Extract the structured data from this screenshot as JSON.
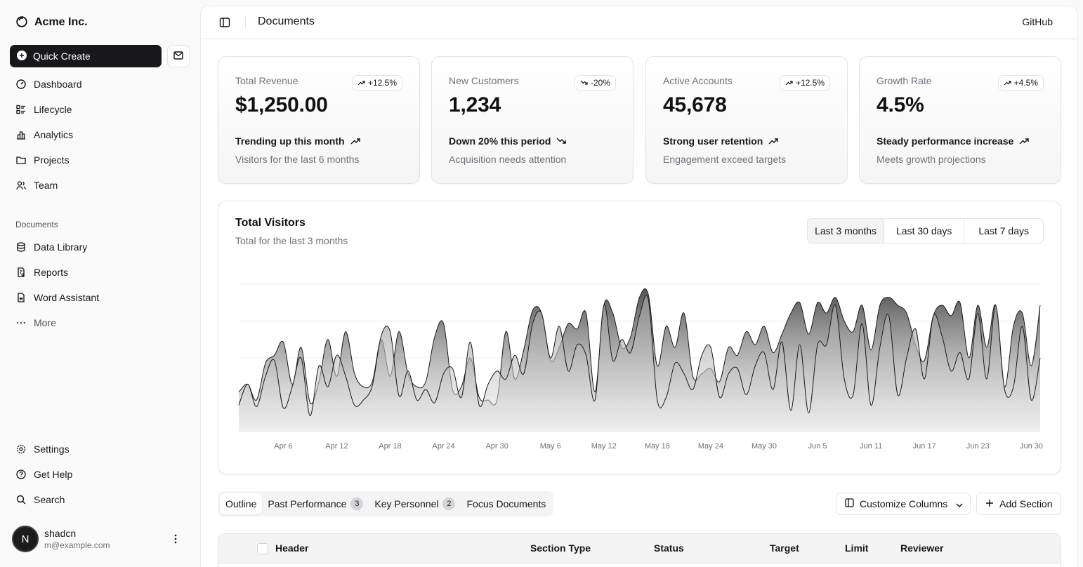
{
  "brand": {
    "name": "Acme Inc.",
    "icon": "circle-logo-icon"
  },
  "sidebar": {
    "quick_create_label": "Quick Create",
    "primary": [
      {
        "label": "Dashboard",
        "icon": "gauge-icon"
      },
      {
        "label": "Lifecycle",
        "icon": "list-details-icon"
      },
      {
        "label": "Analytics",
        "icon": "bar-chart-icon"
      },
      {
        "label": "Projects",
        "icon": "folder-icon"
      },
      {
        "label": "Team",
        "icon": "users-icon"
      }
    ],
    "documents_label": "Documents",
    "documents": [
      {
        "label": "Data Library",
        "icon": "database-icon"
      },
      {
        "label": "Reports",
        "icon": "report-icon"
      },
      {
        "label": "Word Assistant",
        "icon": "file-word-icon"
      },
      {
        "label": "More",
        "icon": "dots-icon"
      }
    ],
    "secondary": [
      {
        "label": "Settings",
        "icon": "gear-icon"
      },
      {
        "label": "Get Help",
        "icon": "help-icon"
      },
      {
        "label": "Search",
        "icon": "search-icon"
      }
    ],
    "user": {
      "initial": "N",
      "name": "shadcn",
      "email": "m@example.com"
    }
  },
  "topbar": {
    "title": "Documents",
    "github": "GitHub"
  },
  "cards": [
    {
      "title": "Total Revenue",
      "value": "$1,250.00",
      "badge": "+12.5%",
      "trend": "up",
      "foot1": "Trending up this month",
      "foot2": "Visitors for the last 6 months"
    },
    {
      "title": "New Customers",
      "value": "1,234",
      "badge": "-20%",
      "trend": "down",
      "foot1": "Down 20% this period",
      "foot2": "Acquisition needs attention"
    },
    {
      "title": "Active Accounts",
      "value": "45,678",
      "badge": "+12.5%",
      "trend": "up",
      "foot1": "Strong user retention",
      "foot2": "Engagement exceed targets"
    },
    {
      "title": "Growth Rate",
      "value": "4.5%",
      "badge": "+4.5%",
      "trend": "up",
      "foot1": "Steady performance increase",
      "foot2": "Meets growth projections"
    }
  ],
  "chart": {
    "title": "Total Visitors",
    "subtitle": "Total for the last 3 months",
    "ranges": [
      "Last 3 months",
      "Last 30 days",
      "Last 7 days"
    ],
    "active_range": "Last 3 months"
  },
  "chart_data": {
    "type": "area",
    "x": [
      "Apr 1",
      "Apr 2",
      "Apr 3",
      "Apr 4",
      "Apr 5",
      "Apr 6",
      "Apr 7",
      "Apr 8",
      "Apr 9",
      "Apr 10",
      "Apr 11",
      "Apr 12",
      "Apr 13",
      "Apr 14",
      "Apr 15",
      "Apr 16",
      "Apr 17",
      "Apr 18",
      "Apr 19",
      "Apr 20",
      "Apr 21",
      "Apr 22",
      "Apr 23",
      "Apr 24",
      "Apr 25",
      "Apr 26",
      "Apr 27",
      "Apr 28",
      "Apr 29",
      "Apr 30",
      "May 1",
      "May 2",
      "May 3",
      "May 4",
      "May 5",
      "May 6",
      "May 7",
      "May 8",
      "May 9",
      "May 10",
      "May 11",
      "May 12",
      "May 13",
      "May 14",
      "May 15",
      "May 16",
      "May 17",
      "May 18",
      "May 19",
      "May 20",
      "May 21",
      "May 22",
      "May 23",
      "May 24",
      "May 25",
      "May 26",
      "May 27",
      "May 28",
      "May 29",
      "May 30",
      "May 31",
      "Jun 1",
      "Jun 2",
      "Jun 3",
      "Jun 4",
      "Jun 5",
      "Jun 6",
      "Jun 7",
      "Jun 8",
      "Jun 9",
      "Jun 10",
      "Jun 11",
      "Jun 12",
      "Jun 13",
      "Jun 14",
      "Jun 15",
      "Jun 16",
      "Jun 17",
      "Jun 18",
      "Jun 19",
      "Jun 20",
      "Jun 21",
      "Jun 22",
      "Jun 23",
      "Jun 24",
      "Jun 25",
      "Jun 26",
      "Jun 27",
      "Jun 28",
      "Jun 29",
      "Jun 30"
    ],
    "x_ticks": [
      "Apr 6",
      "Apr 12",
      "Apr 18",
      "Apr 24",
      "Apr 30",
      "May 6",
      "May 12",
      "May 18",
      "May 24",
      "May 30",
      "Jun 5",
      "Jun 11",
      "Jun 17",
      "Jun 23",
      "Jun 30"
    ],
    "series": [
      {
        "values": [
          100,
          180,
          95,
          210,
          270,
          90,
          170,
          280,
          60,
          250,
          170,
          290,
          210,
          100,
          120,
          175,
          365,
          380,
          135,
          230,
          120,
          160,
          110,
          220,
          240,
          130,
          340,
          100,
          180,
          230,
          200,
          290,
          220,
          410,
          450,
          280,
          400,
          230,
          330,
          290,
          120,
          480,
          270,
          350,
          300,
          440,
          500,
          120,
          130,
          260,
          220,
          160,
          290,
          320,
          130,
          220,
          240,
          140,
          250,
          300,
          160,
          340,
          80,
          330,
          70,
          330,
          330,
          480,
          200,
          140,
          410,
          100,
          320,
          440,
          140,
          280,
          390,
          200,
          440,
          360,
          230,
          300,
          200,
          450,
          200,
          480,
          160,
          170,
          400,
          120,
          280
        ]
      },
      {
        "values": [
          150,
          180,
          120,
          260,
          290,
          340,
          180,
          320,
          110,
          190,
          350,
          210,
          380,
          220,
          170,
          190,
          350,
          210,
          380,
          220,
          170,
          190,
          360,
          410,
          160,
          170,
          280,
          130,
          120,
          120,
          380,
          200,
          310,
          460,
          450,
          270,
          320,
          410,
          390,
          450,
          150,
          480,
          450,
          320,
          360,
          510,
          520,
          250,
          400,
          320,
          450,
          210,
          220,
          240,
          190,
          320,
          290,
          380,
          330,
          400,
          300,
          370,
          450,
          490,
          370,
          490,
          450,
          510,
          420,
          380,
          480,
          310,
          480,
          510,
          480,
          450,
          330,
          270,
          440,
          480,
          440,
          490,
          280,
          480,
          320,
          480,
          170,
          400,
          450,
          250,
          480
        ]
      }
    ],
    "grid": true
  },
  "tabs": [
    {
      "label": "Outline",
      "count": ""
    },
    {
      "label": "Past Performance",
      "count": "3"
    },
    {
      "label": "Key Personnel",
      "count": "2"
    },
    {
      "label": "Focus Documents",
      "count": ""
    }
  ],
  "actions": {
    "customize": "Customize Columns",
    "add_section": "Add Section"
  },
  "table": {
    "headers": [
      "Header",
      "Section Type",
      "Status",
      "Target",
      "Limit",
      "Reviewer"
    ]
  }
}
